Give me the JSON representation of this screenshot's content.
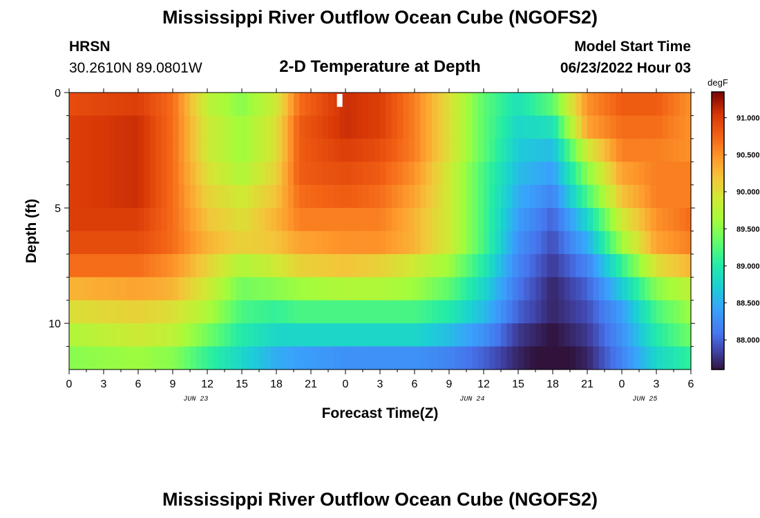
{
  "page": {
    "title": "Mississippi River Outflow Ocean Cube (NGOFS2)",
    "station_name": "HRSN",
    "station_coords": "30.2610N  89.0801W",
    "subtitle": "2-D Temperature at Depth",
    "model_start_label": "Model Start Time",
    "model_start_value": "06/23/2022 Hour 03",
    "footer_title": "Mississippi River Outflow Ocean Cube (NGOFS2)"
  },
  "chart_data": {
    "type": "heatmap",
    "title": "2-D Temperature at Depth",
    "xlabel": "Forecast Time(Z)",
    "ylabel": "Depth (ft)",
    "x_range_hours": [
      0,
      54
    ],
    "y_range_ft": [
      0,
      12
    ],
    "y_reversed": true,
    "x_tick_labels": [
      "0",
      "3",
      "6",
      "9",
      "12",
      "15",
      "18",
      "21",
      "0",
      "3",
      "6",
      "9",
      "12",
      "15",
      "18",
      "21",
      "0",
      "3",
      "6"
    ],
    "y_tick_labels": [
      "0",
      "5",
      "10"
    ],
    "y_tick_values": [
      0,
      5,
      10
    ],
    "date_labels": [
      {
        "hour": 11,
        "label": "JUN 23"
      },
      {
        "hour": 35,
        "label": "JUN 24"
      },
      {
        "hour": 50,
        "label": "JUN 25"
      }
    ],
    "depth_layers_ft": [
      0.5,
      1.5,
      2.5,
      3.5,
      4.5,
      5.5,
      6.5,
      7.5,
      8.5,
      9.5,
      10.5,
      11.5
    ],
    "time_knots_hours": [
      0,
      6,
      9,
      12,
      15,
      18,
      20,
      24,
      27,
      30,
      33,
      36,
      39,
      42,
      45,
      48,
      51,
      54
    ],
    "values_degF": [
      [
        90.9,
        91.0,
        90.7,
        89.8,
        89.5,
        89.9,
        90.7,
        91.1,
        91.0,
        90.6,
        90.0,
        89.3,
        88.9,
        89.3,
        90.5,
        90.8,
        90.8,
        90.5
      ],
      [
        91.0,
        91.1,
        90.7,
        89.9,
        89.6,
        90.0,
        90.8,
        91.1,
        91.0,
        90.6,
        90.0,
        89.3,
        88.8,
        88.9,
        90.4,
        90.7,
        90.7,
        90.5
      ],
      [
        91.0,
        91.1,
        90.7,
        89.9,
        89.6,
        90.0,
        90.8,
        91.0,
        90.9,
        90.6,
        90.0,
        89.3,
        88.7,
        88.6,
        89.9,
        90.6,
        90.6,
        90.5
      ],
      [
        91.0,
        91.1,
        90.7,
        90.0,
        89.7,
        90.1,
        90.8,
        90.9,
        90.8,
        90.5,
        89.9,
        89.2,
        88.6,
        88.4,
        89.5,
        90.4,
        90.6,
        90.6
      ],
      [
        91.0,
        91.1,
        90.7,
        90.1,
        89.9,
        90.2,
        90.7,
        90.8,
        90.7,
        90.4,
        89.9,
        89.2,
        88.5,
        88.2,
        89.2,
        90.2,
        90.6,
        90.6
      ],
      [
        91.0,
        91.0,
        90.7,
        90.2,
        90.0,
        90.3,
        90.6,
        90.6,
        90.6,
        90.3,
        89.9,
        89.2,
        88.4,
        88.0,
        88.8,
        89.9,
        90.5,
        90.7
      ],
      [
        90.9,
        90.9,
        90.7,
        90.3,
        90.1,
        90.2,
        90.4,
        90.5,
        90.5,
        90.3,
        89.9,
        89.2,
        88.3,
        87.9,
        88.5,
        89.6,
        90.4,
        90.6
      ],
      [
        90.7,
        90.7,
        90.5,
        90.1,
        89.7,
        89.9,
        90.1,
        90.2,
        90.1,
        89.9,
        89.6,
        89.0,
        88.2,
        87.8,
        88.2,
        89.1,
        90.0,
        90.3
      ],
      [
        90.3,
        90.4,
        90.3,
        89.9,
        89.4,
        89.5,
        89.6,
        89.7,
        89.7,
        89.6,
        89.3,
        88.8,
        88.1,
        87.7,
        88.0,
        88.7,
        89.5,
        89.8
      ],
      [
        90.0,
        90.1,
        90.0,
        89.7,
        89.2,
        89.1,
        89.2,
        89.2,
        89.2,
        89.2,
        89.0,
        88.6,
        88.0,
        87.7,
        87.9,
        88.4,
        89.2,
        89.6
      ],
      [
        89.7,
        89.9,
        89.8,
        89.4,
        89.0,
        88.8,
        88.8,
        88.8,
        88.8,
        88.8,
        88.6,
        88.3,
        87.8,
        87.6,
        87.8,
        88.3,
        89.0,
        89.4
      ],
      [
        89.5,
        89.6,
        89.5,
        89.1,
        88.8,
        88.5,
        88.4,
        88.3,
        88.3,
        88.3,
        88.2,
        88.0,
        87.7,
        87.5,
        87.7,
        88.2,
        88.8,
        89.1
      ]
    ],
    "colorbar": {
      "unit": "degF",
      "min": 87.6,
      "max": 91.35,
      "tick_values": [
        91.0,
        90.5,
        90.0,
        89.5,
        89.0,
        88.5,
        88.0
      ],
      "tick_labels": [
        "91.000",
        "90.500",
        "90.000",
        "89.500",
        "89.000",
        "88.500",
        "88.000"
      ]
    },
    "marker": {
      "hour": 23.5,
      "depth_from": 0,
      "depth_to": 0.5,
      "color": "#ffffff"
    }
  }
}
